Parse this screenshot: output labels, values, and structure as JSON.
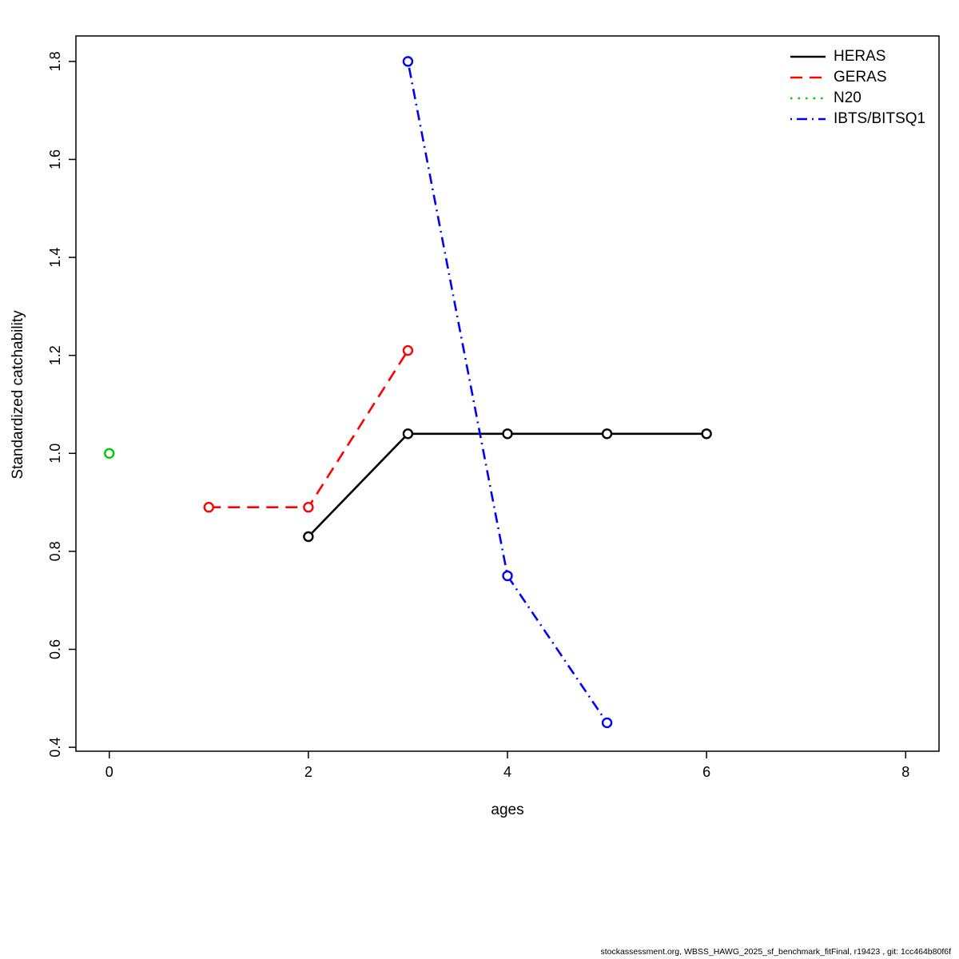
{
  "chart_data": {
    "type": "line",
    "title": "",
    "xlabel": "ages",
    "ylabel": "Standardized catchability",
    "xlim": [
      -0.335,
      8.335
    ],
    "ylim": [
      0.392,
      1.852
    ],
    "xticks": [
      0,
      2,
      4,
      6,
      8
    ],
    "yticks": [
      0.4,
      0.6,
      0.8,
      1.0,
      1.2,
      1.4,
      1.6,
      1.8
    ],
    "grid": false,
    "legend_position": "topright",
    "point_style": "open-circle",
    "series": [
      {
        "name": "HERAS",
        "color": "#000000",
        "dash": "solid",
        "x": [
          2,
          3,
          4,
          5,
          6
        ],
        "y": [
          0.83,
          1.04,
          1.04,
          1.04,
          1.04
        ]
      },
      {
        "name": "GERAS",
        "color": "#ff0000",
        "dash": "dashed",
        "x": [
          1,
          2,
          3
        ],
        "y": [
          0.89,
          0.89,
          1.21
        ]
      },
      {
        "name": "N20",
        "color": "#00cc00",
        "dash": "dotted",
        "x": [
          0
        ],
        "y": [
          1.0
        ]
      },
      {
        "name": "IBTS/BITSQ1",
        "color": "#0000ff",
        "dash": "dotdash",
        "x": [
          3,
          4,
          5
        ],
        "y": [
          1.8,
          0.75,
          0.45
        ]
      }
    ]
  },
  "footer": {
    "text": "stockassessment.org, WBSS_HAWG_2025_sf_benchmark_fitFinal, r19423 , git: 1cc464b80f6f"
  }
}
